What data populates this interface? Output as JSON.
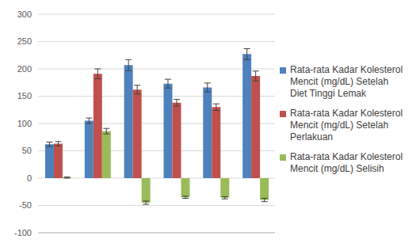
{
  "chart_data": {
    "type": "bar",
    "categories": [
      null,
      null,
      null,
      null,
      null,
      null
    ],
    "series": [
      {
        "name": "Rata-rata Kadar Kolesterol Mencit (mg/dL) Setelah Diet Tinggi Lemak",
        "color": "#4f81bd",
        "values": [
          62,
          105,
          207,
          173,
          166,
          227
        ],
        "errors": [
          4,
          5,
          10,
          8,
          8,
          10
        ]
      },
      {
        "name": "Rata-rata Kadar Kolesterol Mencit (mg/dL) Setelah Perlakuan",
        "color": "#c0504d",
        "values": [
          63,
          191,
          162,
          138,
          130,
          187
        ],
        "errors": [
          4,
          9,
          8,
          6,
          6,
          9
        ]
      },
      {
        "name": "Rata-rata Kadar Kolesterol Mencit (mg/dL) Selisih",
        "color": "#9bbb59",
        "values": [
          1,
          86,
          -45,
          -35,
          -36,
          -40
        ],
        "errors": [
          1,
          5,
          3,
          2,
          2,
          3
        ]
      }
    ],
    "ylim": [
      -100,
      300
    ],
    "yticks": [
      -100,
      -50,
      0,
      50,
      100,
      150,
      200,
      250,
      300
    ],
    "grid": true,
    "legend": "right",
    "tick_labels": "y"
  }
}
